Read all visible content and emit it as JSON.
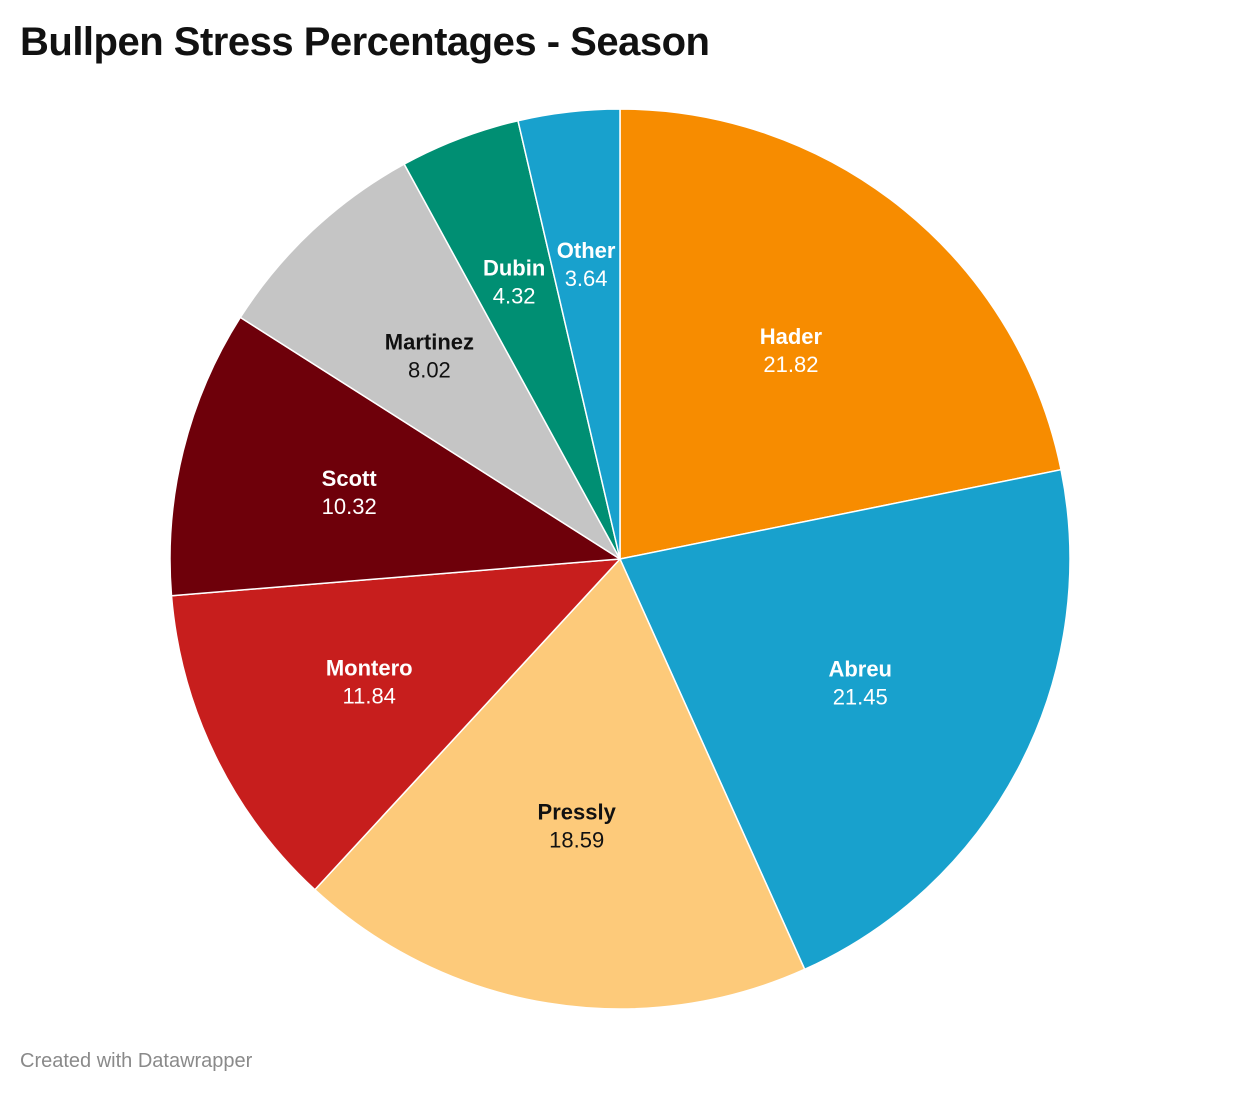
{
  "chart_data": {
    "type": "pie",
    "title": "Bullpen Stress Percentages - Season",
    "slices": [
      {
        "label": "Hader",
        "value": 21.82,
        "value_text": "21.82",
        "color": "#f78c00",
        "text_color": "#ffffff"
      },
      {
        "label": "Abreu",
        "value": 21.45,
        "value_text": "21.45",
        "color": "#18a1cd",
        "text_color": "#ffffff"
      },
      {
        "label": "Pressly",
        "value": 18.59,
        "value_text": "18.59",
        "color": "#fdca7a",
        "text_color": "#111111"
      },
      {
        "label": "Montero",
        "value": 11.84,
        "value_text": "11.84",
        "color": "#c71e1d",
        "text_color": "#ffffff"
      },
      {
        "label": "Scott",
        "value": 10.32,
        "value_text": "10.32",
        "color": "#6e000a",
        "text_color": "#ffffff"
      },
      {
        "label": "Martinez",
        "value": 8.02,
        "value_text": "8.02",
        "color": "#c5c5c5",
        "text_color": "#111111"
      },
      {
        "label": "Dubin",
        "value": 4.32,
        "value_text": "4.32",
        "color": "#008f73",
        "text_color": "#ffffff"
      },
      {
        "label": "Other",
        "value": 3.64,
        "value_text": "3.64",
        "color": "#18a1cd",
        "text_color": "#ffffff"
      }
    ]
  },
  "footer": {
    "credit": "Created with Datawrapper"
  }
}
